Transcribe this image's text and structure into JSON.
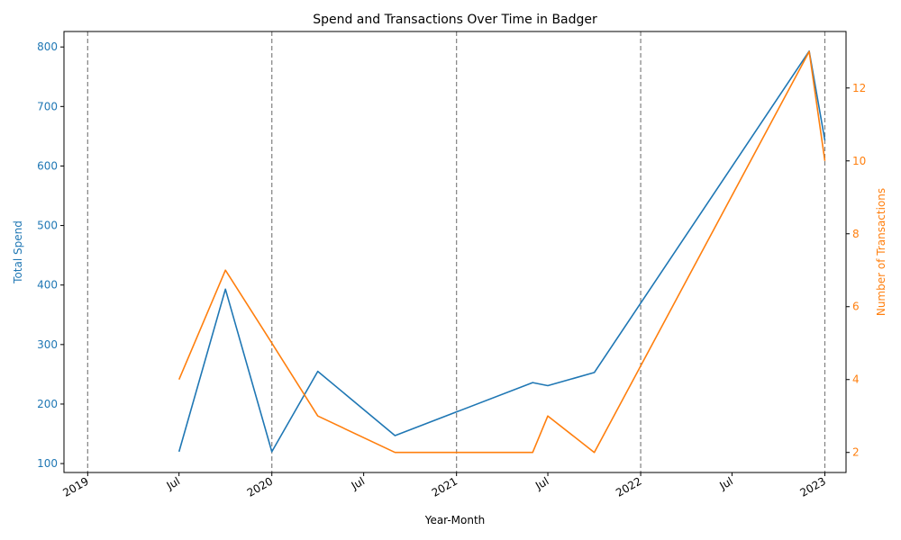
{
  "chart_data": {
    "type": "line",
    "title": "Spend and Transactions Over Time in Badger",
    "xlabel": "Year-Month",
    "ylabel_left": "Total Spend",
    "ylabel_right": "Number of Transactions",
    "x_ticks": [
      {
        "date": "2019-01-01",
        "label": "2019"
      },
      {
        "date": "2019-07-01",
        "label": "Jul"
      },
      {
        "date": "2020-01-01",
        "label": "2020"
      },
      {
        "date": "2020-07-01",
        "label": "Jul"
      },
      {
        "date": "2021-01-01",
        "label": "2021"
      },
      {
        "date": "2021-07-01",
        "label": "Jul"
      },
      {
        "date": "2022-01-01",
        "label": "2022"
      },
      {
        "date": "2022-07-01",
        "label": "Jul"
      },
      {
        "date": "2023-01-01",
        "label": "2023"
      }
    ],
    "xlim": [
      "2018-11-15",
      "2023-02-12"
    ],
    "left_ylim": [
      85,
      826
    ],
    "left_ticks": [
      100,
      200,
      300,
      400,
      500,
      600,
      700,
      800
    ],
    "right_ylim": [
      1.45,
      13.55
    ],
    "right_ticks": [
      2,
      4,
      6,
      8,
      10,
      12
    ],
    "year_lines": [
      "2019-01-01",
      "2020-01-01",
      "2021-01-01",
      "2022-01-01",
      "2023-01-01"
    ],
    "colors": {
      "spend": "#1f77b4",
      "transactions": "#ff7f0e",
      "grid": "#808080"
    },
    "series": [
      {
        "axis": "left",
        "points": [
          {
            "x": "2019-07-01",
            "y": 120
          },
          {
            "x": "2019-10-01",
            "y": 393
          },
          {
            "x": "2020-01-01",
            "y": 120
          },
          {
            "x": "2020-04-01",
            "y": 255
          },
          {
            "x": "2020-09-01",
            "y": 147
          },
          {
            "x": "2021-06-01",
            "y": 236
          },
          {
            "x": "2021-07-01",
            "y": 231
          },
          {
            "x": "2021-10-01",
            "y": 253
          },
          {
            "x": "2022-12-01",
            "y": 793
          },
          {
            "x": "2023-01-01",
            "y": 643
          }
        ]
      },
      {
        "axis": "right",
        "points": [
          {
            "x": "2019-07-01",
            "y": 4
          },
          {
            "x": "2019-10-01",
            "y": 7
          },
          {
            "x": "2020-01-01",
            "y": 5
          },
          {
            "x": "2020-04-01",
            "y": 3
          },
          {
            "x": "2020-09-01",
            "y": 2
          },
          {
            "x": "2021-06-01",
            "y": 2
          },
          {
            "x": "2021-07-01",
            "y": 3
          },
          {
            "x": "2021-10-01",
            "y": 2
          },
          {
            "x": "2022-12-01",
            "y": 13
          },
          {
            "x": "2023-01-01",
            "y": 10
          }
        ]
      }
    ]
  }
}
